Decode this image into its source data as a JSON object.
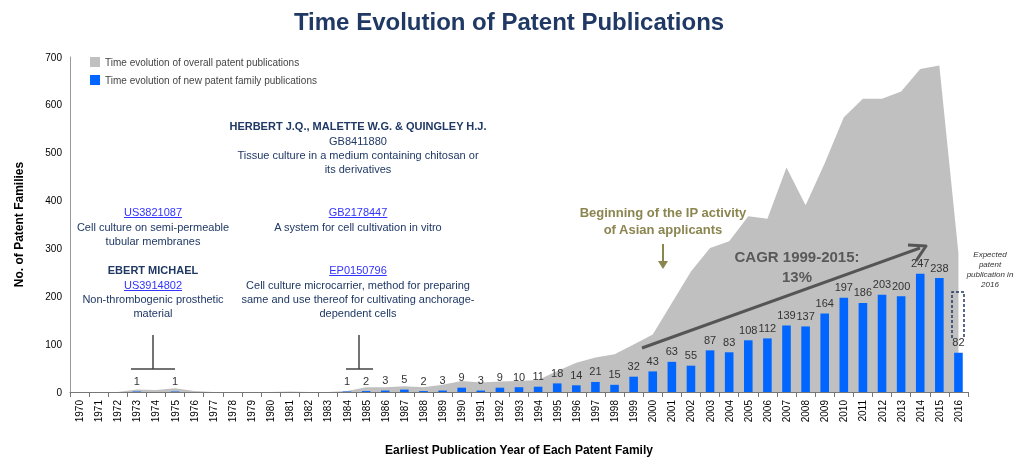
{
  "chart_data": {
    "type": "bar",
    "title": "Time Evolution of Patent Publications",
    "xlabel": "Earliest Publication Year of Each Patent Family",
    "ylabel": "No. of Patent Families",
    "categories": [
      "1970",
      "1971",
      "1972",
      "1973",
      "1974",
      "1975",
      "1976",
      "1977",
      "1978",
      "1979",
      "1980",
      "1981",
      "1982",
      "1983",
      "1984",
      "1985",
      "1986",
      "1987",
      "1988",
      "1989",
      "1990",
      "1991",
      "1992",
      "1993",
      "1994",
      "1995",
      "1996",
      "1997",
      "1998",
      "1999",
      "2000",
      "2001",
      "2002",
      "2003",
      "2004",
      "2005",
      "2006",
      "2007",
      "2008",
      "2009",
      "2010",
      "2011",
      "2012",
      "2013",
      "2014",
      "2015",
      "2016"
    ],
    "series": [
      {
        "name": "Time evolution of overall patent publications",
        "type": "area",
        "color": "#c0c0c0",
        "values": [
          0,
          0,
          0,
          5,
          4,
          8,
          2,
          0,
          0,
          0,
          0,
          1,
          0,
          0,
          2,
          10,
          10,
          12,
          10,
          15,
          23,
          20,
          22,
          23,
          25,
          44,
          61,
          72,
          79,
          99,
          120,
          186,
          252,
          301,
          315,
          367,
          362,
          469,
          390,
          478,
          574,
          613,
          613,
          628,
          675,
          682,
          290
        ]
      },
      {
        "name": "Time evolution of new patent family publications",
        "color": "#0066ff",
        "values": [
          0,
          0,
          0,
          1,
          0,
          1,
          0,
          0,
          0,
          0,
          0,
          0,
          0,
          0,
          1,
          2,
          3,
          5,
          2,
          3,
          9,
          3,
          9,
          10,
          11,
          18,
          14,
          21,
          15,
          32,
          43,
          63,
          55,
          87,
          83,
          108,
          112,
          139,
          137,
          164,
          197,
          186,
          203,
          200,
          247,
          238,
          82
        ],
        "value_labels": [
          null,
          null,
          null,
          "1",
          null,
          "1",
          null,
          null,
          null,
          null,
          null,
          null,
          null,
          null,
          "1",
          "2",
          "3",
          "5",
          "2",
          "3",
          "9",
          "3",
          "9",
          "10",
          "11",
          "18",
          "14",
          "21",
          "15",
          "32",
          "43",
          "63",
          "55",
          "87",
          "83",
          "108",
          "112",
          "139",
          "137",
          "164",
          "197",
          "186",
          "203",
          "200",
          "247",
          "238",
          "82"
        ]
      }
    ],
    "ylim": [
      0,
      700
    ],
    "yticks": [
      0,
      100,
      200,
      300,
      400,
      500,
      600,
      700
    ],
    "grid": false,
    "legend": "top left",
    "annotations": [
      "HERBERT J.Q., MALETTE W.G. & QUINGLEY H.J.",
      "GB8411880",
      "Tissue culture in a medium containing chitosan or its derivatives",
      "GB2178447",
      "A system for cell cultivation in vitro",
      "EP0150796",
      "Cell culture microcarrier, method for preparing same and use thereof for cultivating anchorage-dependent cells",
      "US3821087",
      "Cell culture on semi-permeable tubular membranes",
      "EBERT MICHAEL",
      "US3914802",
      "Non-thrombogenic prosthetic material",
      "Beginning of the IP activity of Asian applicants",
      "CAGR 1999-2015: 13%",
      "Expected patent publication in 2016"
    ]
  }
}
